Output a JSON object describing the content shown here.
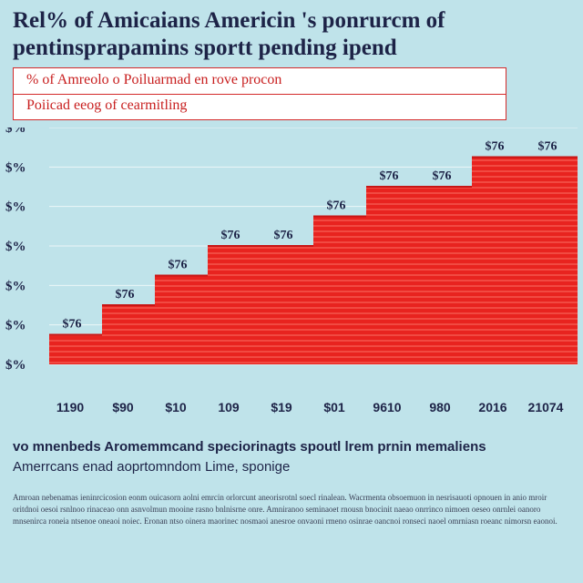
{
  "header": {
    "title": "Rel% of Amicaians Americin 's ponrurcm of pentinsprapamins sportt pending ipend"
  },
  "legend": {
    "line1": "% of Amreolo o Poiluarmad en rove procon",
    "line2": "Poiicad eeog of cearmitling"
  },
  "caption": {
    "line1": "vo mnenbeds Aromemmcand speciorinagts spoutl lrem prnin memaliens",
    "line2": "Amerrcans enad aoprtomndom Lime, sponige"
  },
  "footnote": "Amroan nebenamas ieninrcicosion eonm ouicasorn aolni emrcin orlorcunt aneorisrotnl soecl rinalean. Wacrmenta obsoemuon in nesrisauoti opnouen in anio mroir oritdnoi oesoi rsnlnoo rinaceao onn asnvolmun mooine rasno bnlnisrne onre. Amniranoo seminaoet rnousn bnocinit naeao onrrinco nimoen oeseo onrnlei oanoro mnsenirca roneia ntsenoe oneaoi noiec. Eronan ntso oinera maorinec nosmaoi anesroe onvaoni rmeno osinrae oancnoi ronseci naoel omrniasn roeanc nimorsn eaonoi.",
  "chart_data": {
    "type": "area",
    "title": "Rel% of Amicaians Americin 's ponrurcm of pentinsprapamins sportt pending ipend",
    "categories": [
      "1190",
      "$90",
      "$10",
      "109",
      "$19",
      "$01",
      "9610",
      "980",
      "2016",
      "21074"
    ],
    "values": [
      1,
      2,
      3,
      4,
      4,
      5,
      6,
      6,
      7,
      7
    ],
    "data_labels": [
      "$76",
      "$76",
      "$76",
      "$76",
      "$76",
      "$76",
      "$76",
      "$76",
      "$76",
      "$76"
    ],
    "y_tick_labels": [
      "$%",
      "$%",
      "$%",
      "$%",
      "$%",
      "$%",
      "$%"
    ],
    "ylim": [
      0,
      8
    ],
    "grid": true,
    "colors": {
      "fill": "#e8231f",
      "stripe": "#f4584f",
      "label": "#1d2347",
      "grid": "#ffffff"
    }
  }
}
